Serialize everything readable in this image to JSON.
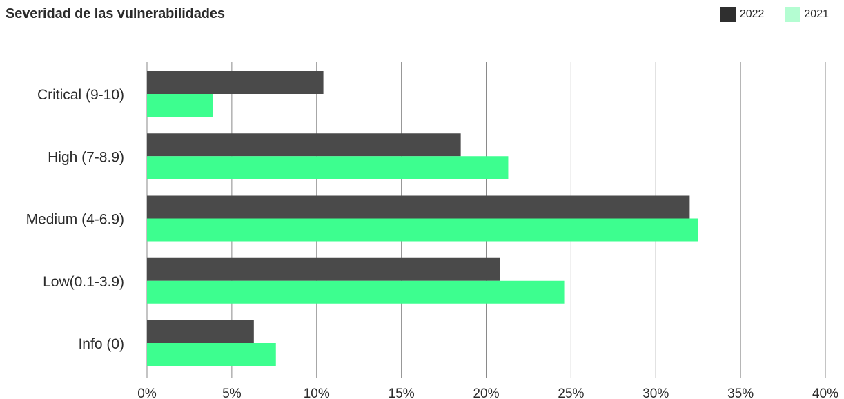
{
  "chart_data": {
    "type": "bar",
    "orientation": "horizontal",
    "title": "Severidad de las vulnerabilidades",
    "categories": [
      "Critical (9-10)",
      "High (7-8.9)",
      "Medium (4-6.9)",
      "Low(0.1-3.9)",
      "Info (0)"
    ],
    "series": [
      {
        "name": "2022",
        "color": "#4a4a4a",
        "values": [
          10.4,
          18.5,
          32.0,
          20.8,
          6.3
        ]
      },
      {
        "name": "2021",
        "color": "#3dfe8f",
        "values": [
          3.9,
          21.3,
          32.5,
          24.6,
          7.6
        ]
      }
    ],
    "legend_swatch_colors": {
      "2022": "#2f2f2f",
      "2021": "#b4fdd2"
    },
    "xlim": [
      0,
      40
    ],
    "xticks": [
      "0%",
      "5%",
      "10%",
      "15%",
      "20%",
      "25%",
      "30%",
      "35%",
      "40%"
    ],
    "grid": "vertical",
    "legend_position": "top-right"
  }
}
